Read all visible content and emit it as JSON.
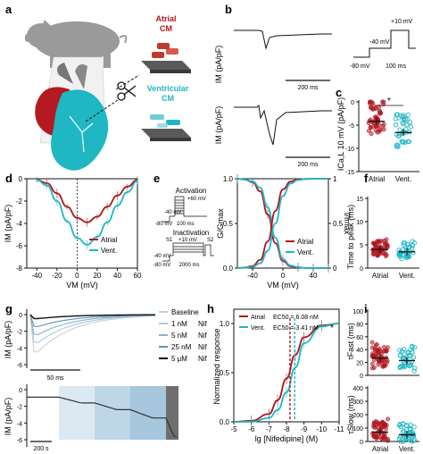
{
  "panels": {
    "a": {
      "letter": "a",
      "atrial_label_1": "Atrial",
      "atrial_label_2": "CM",
      "ventricular_label_1": "Ventricular",
      "ventricular_label_2": "CM"
    },
    "b": {
      "letter": "b",
      "ylabel_top": "IM (pA/pF)",
      "ylabel_bottom": "IM (pA/pF)",
      "scale_top": "200 ms",
      "scale_bottom": "200 ms",
      "protocol": {
        "v_step": "+10 mV",
        "v_hold1": "-40 mV",
        "v_hold0": "-80 mV",
        "duration": "100 ms"
      }
    },
    "c": {
      "letter": "c",
      "ylabel": "ICa,L 10 mV (pA/pF)",
      "significance": "*",
      "categories": [
        "Atrial",
        "Vent."
      ],
      "yticks": [
        "0",
        "-5",
        "-10",
        "-15"
      ]
    },
    "d": {
      "letter": "d",
      "ylabel": "IM (pA/pF)",
      "xlabel": "VM (mV)",
      "xticks": [
        "-40",
        "-20",
        "0",
        "20",
        "40",
        "60"
      ],
      "yticks": [
        "0",
        "-2",
        "-4",
        "-6",
        "-8"
      ],
      "legend": [
        "Atrial",
        "Vent."
      ]
    },
    "e": {
      "letter": "e",
      "activation_title": "Activation",
      "act_v_top": "+60 mV",
      "act_v_hold1": "-40 mV",
      "act_v_hold0": "-80 mV",
      "act_duration": "100 ms",
      "inactivation_title": "Inactivation",
      "inact_s1": "S1",
      "inact_s2": "S2",
      "inact_v_step": "+10 mV",
      "inact_v_hold1": "-40 mV",
      "inact_v_hold0": "-80 mV",
      "inact_duration": "2000 ms",
      "ylabel_left": "G/Gmax",
      "ylabel_right": "I/Imax",
      "xlabel": "VM (mV)",
      "xticks": [
        "-40",
        "0",
        "40"
      ],
      "yticks_left": [
        "0.0",
        "0.5",
        "1.0"
      ],
      "yticks_right": [
        "0",
        "0.5",
        "1"
      ],
      "legend": [
        "Atrial",
        "Vent."
      ]
    },
    "f": {
      "letter": "f",
      "ylabel": "Time to peak (ms)",
      "yticks": [
        "0",
        "5",
        "10",
        "15"
      ],
      "categories": [
        "Atrial",
        "Vent."
      ]
    },
    "g": {
      "letter": "g",
      "ylabel_top": "IM (pA/pF)",
      "ylabel_bottom": "IM (pA/pF)",
      "yticks_top": [
        "0",
        "-2",
        "-4",
        "-6"
      ],
      "yticks_bottom": [
        "0",
        "-2",
        "-4",
        "-6"
      ],
      "scale_top": "50 ms",
      "scale_bottom": "200 s",
      "legend": [
        {
          "conc": "Baseline",
          "drug": ""
        },
        {
          "conc": "1 nM",
          "drug": "Nif"
        },
        {
          "conc": "5 nM",
          "drug": "Nif"
        },
        {
          "conc": "25 nM",
          "drug": "Nif"
        },
        {
          "conc": "5 μM",
          "drug": "Nif"
        }
      ]
    },
    "h": {
      "letter": "h",
      "ylabel": "Normalized response",
      "xlabel": "lg [Nifedipine] (M)",
      "xticks": [
        "-5",
        "-6",
        "-7",
        "-8",
        "-9",
        "-10",
        "-11"
      ],
      "yticks": [
        "0.0",
        "0.5",
        "1.0"
      ],
      "legend_atrial": "Atrial",
      "legend_vent": "Vent.",
      "ec50_atrial": "EC50 = 6.08 nM",
      "ec50_vent": "EC50 = 3.41 nM",
      "significance": "*"
    },
    "i": {
      "letter": "i",
      "ylabel_top": "τFast (ms)",
      "ylabel_bottom": "τSlow (ms)",
      "yticks_top": [
        "0",
        "20",
        "40",
        "60",
        "80",
        "100"
      ],
      "yticks_bottom": [
        "0",
        "100",
        "200",
        "300",
        "400"
      ],
      "categories": [
        "Atrial",
        "Vent."
      ]
    }
  },
  "colors": {
    "atrial": "#b0161e",
    "vent": "#1fb7c4",
    "dark": "#1a1a1a",
    "grey": "#888888"
  },
  "chart_data": [
    {
      "type": "line",
      "panel": "d",
      "xlabel": "VM (mV)",
      "ylabel": "IM (pA/pF)",
      "xlim": [
        -50,
        60
      ],
      "ylim": [
        -8,
        0
      ],
      "x": [
        -40,
        -30,
        -20,
        -10,
        0,
        10,
        20,
        30,
        40,
        50,
        60
      ],
      "series": [
        {
          "name": "Atrial",
          "values": [
            -0.1,
            -0.4,
            -1.3,
            -2.5,
            -3.5,
            -3.9,
            -3.4,
            -2.5,
            -1.5,
            -0.7,
            -0.1
          ]
        },
        {
          "name": "Vent.",
          "values": [
            -0.1,
            -0.6,
            -2.0,
            -3.8,
            -5.3,
            -5.9,
            -5.2,
            -3.9,
            -2.4,
            -1.2,
            -0.2
          ]
        }
      ]
    },
    {
      "type": "line",
      "panel": "e",
      "xlabel": "VM (mV)",
      "xlim": [
        -60,
        60
      ],
      "ylim": [
        0,
        1
      ],
      "x": [
        -60,
        -50,
        -40,
        -30,
        -20,
        -10,
        0,
        10,
        20,
        30,
        40,
        50,
        60
      ],
      "series": [
        {
          "name": "Atrial",
          "values": [
            1.0,
            0.99,
            0.96,
            0.86,
            0.6,
            0.28,
            0.08,
            0.02,
            0.01,
            0.0,
            0.0,
            0.0,
            0.0
          ]
        },
        {
          "name": "Vent.",
          "values": [
            1.0,
            0.99,
            0.97,
            0.9,
            0.68,
            0.34,
            0.1,
            0.03,
            0.01,
            0.0,
            0.0,
            0.0,
            0.0
          ]
        }
      ]
    },
    {
      "type": "line",
      "panel": "h",
      "xlabel": "lg [Nifedipine] (M)",
      "ylabel": "Normalized response",
      "xlim": [
        -5,
        -11
      ],
      "ylim": [
        0,
        1
      ],
      "x": [
        -5,
        -6,
        -7,
        -7.5,
        -8,
        -8.5,
        -9,
        -10,
        -11
      ],
      "series": [
        {
          "name": "Atrial",
          "values": [
            0.0,
            0.01,
            0.08,
            0.22,
            0.44,
            0.68,
            0.86,
            0.98,
            1.0
          ]
        },
        {
          "name": "Vent.",
          "values": [
            0.0,
            0.0,
            0.04,
            0.12,
            0.3,
            0.55,
            0.8,
            0.97,
            1.0
          ]
        }
      ]
    },
    {
      "type": "scatter",
      "panel": "c",
      "ylabel": "ICa,L 10 mV (pA/pF)",
      "categories": [
        "Atrial",
        "Vent."
      ],
      "means": [
        -4.2,
        -6.6
      ],
      "ylim": [
        -15,
        0
      ]
    },
    {
      "type": "scatter",
      "panel": "f",
      "ylabel": "Time to peak (ms)",
      "categories": [
        "Atrial",
        "Vent."
      ],
      "means": [
        4.0,
        3.5
      ],
      "ylim": [
        0,
        15
      ]
    },
    {
      "type": "scatter",
      "panel": "i-top",
      "ylabel": "τFast (ms)",
      "categories": [
        "Atrial",
        "Vent."
      ],
      "means": [
        27,
        23
      ],
      "ylim": [
        0,
        100
      ]
    },
    {
      "type": "scatter",
      "panel": "i-bottom",
      "ylabel": "τSlow (ms)",
      "categories": [
        "Atrial",
        "Vent."
      ],
      "means": [
        70,
        50
      ],
      "ylim": [
        0,
        400
      ]
    }
  ]
}
